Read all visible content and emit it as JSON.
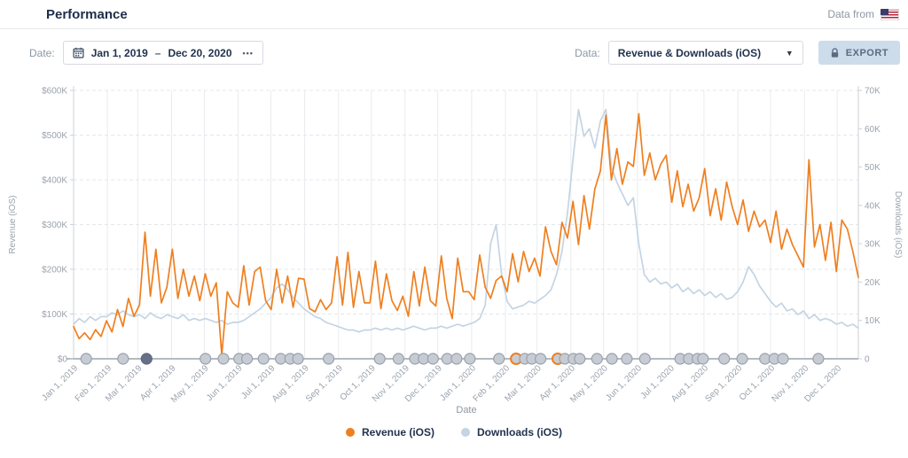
{
  "header": {
    "title": "Performance",
    "data_from_label": "Data from",
    "flag_country": "United States"
  },
  "toolbar": {
    "date_label": "Date:",
    "date_range": {
      "start": "Jan 1, 2019",
      "separator": "–",
      "end": "Dec 20, 2020"
    },
    "date_more": "•••",
    "data_label": "Data:",
    "data_select_value": "Revenue & Downloads (iOS)",
    "export_label": "EXPORT"
  },
  "chart_data": {
    "type": "line",
    "title": "",
    "xlabel": "Date",
    "x_start": "Jan 1, 2019",
    "x_end": "Dec 20, 2020",
    "grid": true,
    "y_axis_left": {
      "title": "Revenue (iOS)",
      "min": 0,
      "max": 600000,
      "max_k": 600,
      "tick_labels": [
        "$0",
        "$100K",
        "$200K",
        "$300K",
        "$400K",
        "$500K",
        "$600K"
      ]
    },
    "y_axis_right": {
      "title": "Downloads (iOS)",
      "min": 0,
      "max": 70000,
      "max_k": 70,
      "tick_labels": [
        "0",
        "10K",
        "20K",
        "30K",
        "40K",
        "50K",
        "60K",
        "70K"
      ]
    },
    "x_tick_labels": [
      {
        "label": "Jan 1, 2019",
        "pct": 0
      },
      {
        "label": "Feb 1, 2019",
        "pct": 4.31
      },
      {
        "label": "Mar 1, 2019",
        "pct": 8.18
      },
      {
        "label": "Apr 1, 2019",
        "pct": 12.49
      },
      {
        "label": "May 1, 2019",
        "pct": 16.66
      },
      {
        "label": "Jun 1, 2019",
        "pct": 20.97
      },
      {
        "label": "Jul 1, 2019",
        "pct": 25.14
      },
      {
        "label": "Aug 1, 2019",
        "pct": 29.45
      },
      {
        "label": "Sep 1, 2019",
        "pct": 33.76
      },
      {
        "label": "Oct 1, 2019",
        "pct": 37.93
      },
      {
        "label": "Nov 1, 2019",
        "pct": 42.24
      },
      {
        "label": "Dec 1, 2019",
        "pct": 46.41
      },
      {
        "label": "Jan 1, 2020",
        "pct": 50.72
      },
      {
        "label": "Feb 1, 2020",
        "pct": 55.03
      },
      {
        "label": "Mar 1, 2020",
        "pct": 59.06
      },
      {
        "label": "Apr 1, 2020",
        "pct": 63.37
      },
      {
        "label": "May 1, 2020",
        "pct": 67.54
      },
      {
        "label": "Jun 1, 2020",
        "pct": 71.85
      },
      {
        "label": "Jul 1, 2020",
        "pct": 76.02
      },
      {
        "label": "Aug 1, 2020",
        "pct": 80.33
      },
      {
        "label": "Sep 1, 2020",
        "pct": 84.65
      },
      {
        "label": "Oct 1, 2020",
        "pct": 88.81
      },
      {
        "label": "Nov 1, 2020",
        "pct": 93.13
      },
      {
        "label": "Dec 1, 2020",
        "pct": 97.3
      }
    ],
    "series": [
      {
        "name": "Revenue (iOS)",
        "axis": "left",
        "color": "#ef7f1f",
        "unit": "USD thousands, daily estimates",
        "values_k": [
          72,
          45,
          58,
          43,
          65,
          50,
          85,
          60,
          110,
          72,
          135,
          95,
          120,
          283,
          140,
          245,
          125,
          160,
          245,
          135,
          200,
          140,
          185,
          130,
          190,
          140,
          170,
          8,
          150,
          125,
          115,
          208,
          120,
          195,
          205,
          130,
          110,
          200,
          125,
          185,
          115,
          180,
          178,
          112,
          105,
          132,
          110,
          125,
          228,
          120,
          238,
          115,
          195,
          125,
          125,
          218,
          112,
          190,
          130,
          108,
          140,
          95,
          195,
          118,
          205,
          130,
          118,
          230,
          135,
          90,
          225,
          150,
          150,
          132,
          232,
          160,
          135,
          175,
          185,
          150,
          235,
          172,
          240,
          195,
          225,
          185,
          295,
          240,
          210,
          305,
          270,
          352,
          255,
          365,
          290,
          380,
          420,
          545,
          400,
          470,
          390,
          440,
          430,
          548,
          410,
          460,
          400,
          435,
          455,
          350,
          420,
          340,
          390,
          330,
          360,
          425,
          320,
          380,
          310,
          395,
          340,
          300,
          355,
          285,
          330,
          295,
          310,
          260,
          330,
          245,
          290,
          255,
          230,
          205,
          445,
          250,
          300,
          220,
          305,
          195,
          310,
          290,
          240,
          182
        ]
      },
      {
        "name": "Downloads (iOS)",
        "axis": "right",
        "color": "#c4d4e3",
        "unit": "downloads thousands, daily estimates",
        "values_k": [
          9,
          10.5,
          9.5,
          11,
          10,
          11,
          11,
          12,
          11.5,
          12.5,
          11.5,
          11,
          11.5,
          10.5,
          12,
          11,
          10.5,
          11.5,
          11,
          10.5,
          11.5,
          10,
          10.5,
          10,
          10.5,
          10,
          9.5,
          10,
          9,
          9.5,
          9.5,
          10,
          11,
          12,
          13,
          14.5,
          16,
          18.5,
          19.5,
          18,
          16,
          14.5,
          13,
          12,
          11,
          10.5,
          9.5,
          9,
          8.5,
          8,
          7.5,
          7.5,
          7,
          7.5,
          7.5,
          8,
          7.5,
          8,
          7.5,
          8,
          7.5,
          8,
          8.5,
          8,
          7.5,
          8,
          8,
          8.5,
          8,
          8.5,
          9,
          8.5,
          9,
          9.5,
          10.5,
          14,
          30,
          35,
          22,
          15,
          13,
          13.5,
          14,
          15,
          14.5,
          15.5,
          16.5,
          18,
          22,
          28,
          38,
          52,
          65,
          58,
          60,
          55,
          62,
          65,
          50,
          46,
          43,
          40,
          42,
          30,
          22,
          20,
          21,
          19.5,
          20,
          18.5,
          19.5,
          17.5,
          18.5,
          17,
          18,
          16.5,
          17.5,
          16,
          17,
          15.5,
          16,
          17.5,
          20,
          24,
          22,
          19,
          17,
          15,
          13.5,
          14.5,
          12.5,
          13,
          11.5,
          12.5,
          10.5,
          11.5,
          10,
          10.5,
          10,
          9,
          9.5,
          8.5,
          9,
          8
        ]
      }
    ],
    "events": [
      {
        "pct": 1.6,
        "style": "default"
      },
      {
        "pct": 6.3,
        "style": "default"
      },
      {
        "pct": 9.3,
        "style": "dark"
      },
      {
        "pct": 16.8,
        "style": "default"
      },
      {
        "pct": 19.1,
        "style": "default"
      },
      {
        "pct": 21.1,
        "style": "default"
      },
      {
        "pct": 22.1,
        "style": "default"
      },
      {
        "pct": 24.2,
        "style": "default"
      },
      {
        "pct": 26.4,
        "style": "default"
      },
      {
        "pct": 27.6,
        "style": "default"
      },
      {
        "pct": 28.6,
        "style": "default"
      },
      {
        "pct": 32.5,
        "style": "default"
      },
      {
        "pct": 39.0,
        "style": "default"
      },
      {
        "pct": 41.4,
        "style": "default"
      },
      {
        "pct": 43.5,
        "style": "default"
      },
      {
        "pct": 44.6,
        "style": "default"
      },
      {
        "pct": 45.8,
        "style": "default"
      },
      {
        "pct": 47.6,
        "style": "default"
      },
      {
        "pct": 48.8,
        "style": "default"
      },
      {
        "pct": 50.5,
        "style": "default"
      },
      {
        "pct": 54.2,
        "style": "default"
      },
      {
        "pct": 56.4,
        "style": "orange"
      },
      {
        "pct": 57.5,
        "style": "default"
      },
      {
        "pct": 58.4,
        "style": "default"
      },
      {
        "pct": 59.5,
        "style": "default"
      },
      {
        "pct": 61.7,
        "style": "orange"
      },
      {
        "pct": 62.6,
        "style": "default"
      },
      {
        "pct": 63.7,
        "style": "default"
      },
      {
        "pct": 64.5,
        "style": "default"
      },
      {
        "pct": 66.7,
        "style": "default"
      },
      {
        "pct": 68.6,
        "style": "default"
      },
      {
        "pct": 70.5,
        "style": "default"
      },
      {
        "pct": 72.8,
        "style": "default"
      },
      {
        "pct": 77.3,
        "style": "default"
      },
      {
        "pct": 78.4,
        "style": "default"
      },
      {
        "pct": 79.5,
        "style": "default"
      },
      {
        "pct": 80.2,
        "style": "default"
      },
      {
        "pct": 82.9,
        "style": "default"
      },
      {
        "pct": 85.2,
        "style": "default"
      },
      {
        "pct": 88.1,
        "style": "default"
      },
      {
        "pct": 89.3,
        "style": "default"
      },
      {
        "pct": 90.4,
        "style": "default"
      },
      {
        "pct": 94.9,
        "style": "default"
      }
    ],
    "legend_position": "bottom"
  },
  "legend": {
    "items": [
      {
        "label": "Revenue (iOS)",
        "color": "#ef7f1f"
      },
      {
        "label": "Downloads (iOS)",
        "color": "#c4d4e3"
      }
    ]
  }
}
